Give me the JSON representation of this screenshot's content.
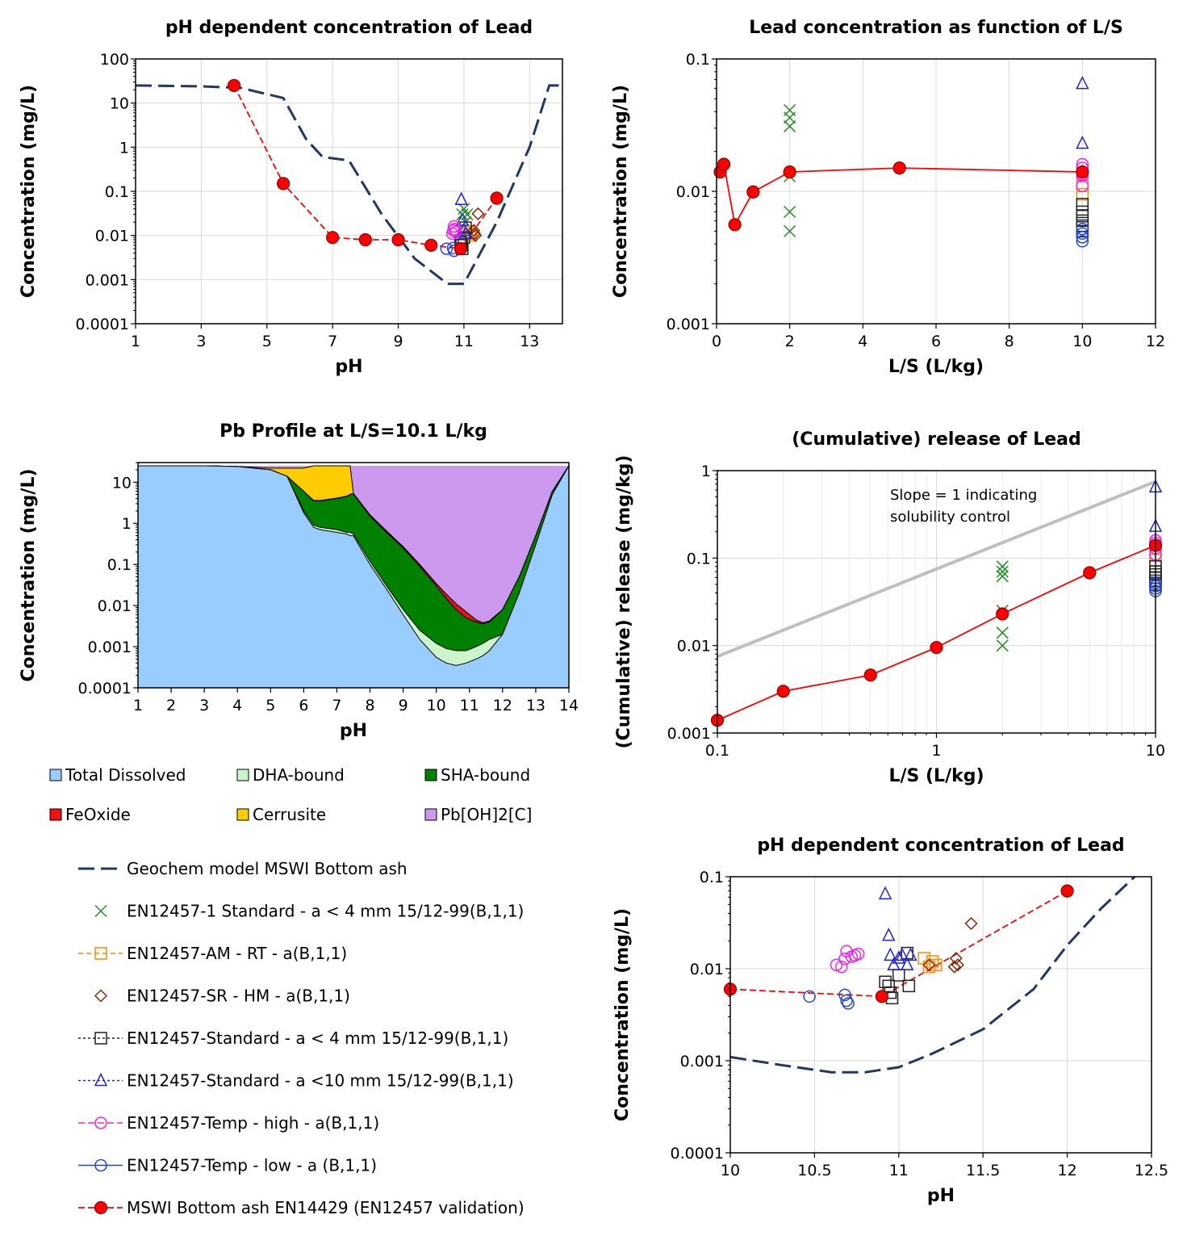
{
  "legend_area": {
    "top": [
      "Total Dissolved",
      "DHA-bound",
      "SHA-bound",
      "FeOxide",
      "Cerrusite",
      "Pb[OH]2[C]"
    ],
    "bottom": [
      "Geochem model MSWI Bottom ash",
      "EN12457-1 Standard - a < 4 mm 15/12-99(B,1,1)",
      "EN12457-AM - RT - a(B,1,1)",
      "EN12457-SR - HM - a(B,1,1)",
      "EN12457-Standard - a < 4 mm 15/12-99(B,1,1)",
      "EN12457-Standard - a <10 mm 15/12-99(B,1,1)",
      "EN12457-Temp - high - a(B,1,1)",
      "EN12457-Temp - low - a (B,1,1)",
      "MSWI Bottom ash EN14429 (EN12457 validation)"
    ]
  },
  "colors": {
    "model": "#1f3864",
    "validation": "#ff0000",
    "std4": "#228b22",
    "am": "#ff8c00",
    "sr": "#8b2500",
    "std4b": "#222222",
    "std10": "#2222dd",
    "temphigh": "#ee22ee",
    "templow": "#2244dd",
    "total": "#99ccff",
    "dha": "#ccf5cc",
    "sha": "#008000",
    "feoxide": "#ee1111",
    "cerrusite": "#ffcc00",
    "pboh2": "#cc99ee",
    "slope": "#bfbfbf"
  },
  "chart_data": [
    {
      "id": "ph1",
      "type": "scatter",
      "title": "pH dependent concentration of Lead",
      "xlabel": "pH",
      "ylabel": "Concentration (mg/L)",
      "xlim": [
        1,
        14
      ],
      "ylim": [
        0.0001,
        100
      ],
      "yscale": "log",
      "xticks": [
        1,
        3,
        5,
        7,
        9,
        11,
        13
      ],
      "yticks": [
        100,
        10,
        1,
        0.1,
        0.01,
        0.001,
        0.0001
      ],
      "ytick_labels": [
        "100",
        "10",
        "1",
        "0.1",
        "0.01",
        "0.001",
        "0.0001"
      ],
      "model": {
        "x": [
          1,
          3,
          4.2,
          5.5,
          6.2,
          6.7,
          7.5,
          8.5,
          9.5,
          10.5,
          11,
          12,
          13,
          13.6,
          14
        ],
        "y": [
          25,
          24,
          22,
          13,
          1.5,
          0.6,
          0.5,
          0.03,
          0.003,
          0.0008,
          0.0008,
          0.02,
          1,
          25,
          25
        ]
      },
      "validation": {
        "x": [
          4,
          5.5,
          7,
          8,
          9,
          10,
          10.9,
          12
        ],
        "y": [
          25,
          0.15,
          0.009,
          0.008,
          0.008,
          0.006,
          0.005,
          0.07
        ]
      },
      "std4": {
        "x": [
          10.95,
          11.0,
          11.05,
          11.1
        ],
        "y": [
          0.03,
          0.04,
          0.02,
          0.03
        ]
      },
      "am": {
        "x": [
          11.17,
          11.2,
          11.22
        ],
        "y": [
          0.012,
          0.01,
          0.011
        ]
      },
      "sr": {
        "x": [
          11.3,
          11.32,
          11.35,
          11.43
        ],
        "y": [
          0.013,
          0.011,
          0.01,
          0.031
        ]
      },
      "std4b": {
        "x": [
          10.9,
          10.93,
          10.95,
          11.0,
          11.05
        ],
        "y": [
          0.007,
          0.006,
          0.005,
          0.009,
          0.015
        ]
      },
      "std10": {
        "x": [
          10.92,
          10.95,
          11.0,
          11.05
        ],
        "y": [
          0.065,
          0.022,
          0.013,
          0.011
        ]
      },
      "temphigh": {
        "x": [
          10.65,
          10.68,
          10.7,
          10.72,
          10.75
        ],
        "y": [
          0.011,
          0.013,
          0.016,
          0.014,
          0.012
        ]
      },
      "templow": {
        "x": [
          10.47,
          10.67,
          10.7
        ],
        "y": [
          0.005,
          0.0052,
          0.0045
        ]
      }
    },
    {
      "id": "ls1",
      "type": "scatter",
      "title": "Lead concentration as function of L/S",
      "xlabel": "L/S (L/kg)",
      "ylabel": "Concentration (mg/L)",
      "xlim": [
        0,
        12
      ],
      "ylim": [
        0.001,
        0.1
      ],
      "yscale": "log",
      "xticks": [
        0,
        2,
        4,
        6,
        8,
        10,
        12
      ],
      "yticks": [
        0.1,
        0.01,
        0.001
      ],
      "ytick_labels": [
        "0.1",
        "0.01",
        "0.001"
      ],
      "validation": {
        "x": [
          0.1,
          0.2,
          0.5,
          1,
          2,
          5,
          10
        ],
        "y": [
          0.014,
          0.016,
          0.0056,
          0.0099,
          0.014,
          0.015,
          0.014
        ]
      },
      "std4": {
        "x": [
          2,
          2,
          2,
          2,
          2,
          2
        ],
        "y": [
          0.041,
          0.036,
          0.031,
          0.013,
          0.007,
          0.005
        ]
      },
      "std10": {
        "x": [
          10,
          10,
          10
        ],
        "y": [
          0.065,
          0.023,
          0.014
        ]
      },
      "std4b": {
        "x": [
          10,
          10,
          10,
          10,
          10,
          10
        ],
        "y": [
          0.008,
          0.007,
          0.0065,
          0.006,
          0.0055,
          0.005
        ]
      },
      "am": {
        "x": [
          10,
          10
        ],
        "y": [
          0.011,
          0.0095
        ]
      },
      "temphigh": {
        "x": [
          10,
          10,
          10,
          10,
          10
        ],
        "y": [
          0.016,
          0.015,
          0.0135,
          0.013,
          0.011
        ]
      },
      "templow": {
        "x": [
          10,
          10,
          10,
          10
        ],
        "y": [
          0.0052,
          0.0048,
          0.0045,
          0.0042
        ]
      }
    },
    {
      "id": "prof",
      "type": "area",
      "title": "Pb Profile at L/S=10.1 L/kg",
      "xlabel": "pH",
      "ylabel": "Concentration (mg/L)",
      "xlim": [
        1,
        14
      ],
      "ylim": [
        0.0001,
        30
      ],
      "yscale": "log",
      "xticks": [
        1,
        2,
        3,
        4,
        5,
        6,
        7,
        8,
        9,
        10,
        11,
        12,
        13,
        14
      ],
      "yticks": [
        10,
        1,
        0.1,
        0.01,
        0.001,
        0.0001
      ],
      "ytick_labels": [
        "10",
        "1",
        "0.1",
        "0.01",
        "0.001",
        "0.0001"
      ],
      "x": [
        1,
        2,
        3,
        4,
        5,
        5.5,
        6,
        6.3,
        6.5,
        7,
        7.3,
        7.4,
        7.5,
        8,
        8.5,
        9,
        9.5,
        10,
        10.3,
        10.6,
        10.9,
        11.2,
        11.4,
        11.6,
        12,
        12.5,
        13,
        13.5,
        14
      ],
      "series": [
        {
          "name": "Total Dissolved",
          "values": [
            25,
            25,
            25,
            24,
            20,
            14,
            1.8,
            0.8,
            0.7,
            0.6,
            0.55,
            0.5,
            0.5,
            0.1,
            0.025,
            0.006,
            0.0015,
            0.00055,
            0.0004,
            0.00035,
            0.0004,
            0.0005,
            0.0006,
            0.0008,
            0.002,
            0.02,
            0.3,
            5,
            25
          ]
        },
        {
          "name": "DHA-bound",
          "values": [
            25,
            25,
            25,
            24,
            20,
            14,
            2,
            0.9,
            0.8,
            0.7,
            0.6,
            0.6,
            0.55,
            0.12,
            0.03,
            0.008,
            0.0025,
            0.0012,
            0.0009,
            0.0008,
            0.0008,
            0.001,
            0.0012,
            0.0015,
            0.002,
            0.02,
            0.3,
            5,
            25
          ]
        },
        {
          "name": "SHA-bound",
          "values": [
            25,
            25,
            25,
            24,
            20,
            14,
            6,
            3.5,
            3.5,
            4,
            4.5,
            5,
            5.2,
            1.5,
            0.6,
            0.25,
            0.09,
            0.03,
            0.015,
            0.008,
            0.005,
            0.004,
            0.0036,
            0.004,
            0.008,
            0.05,
            0.5,
            6,
            25
          ]
        },
        {
          "name": "FeOxide",
          "values": [
            25,
            25,
            25,
            24,
            20,
            14,
            6,
            3.6,
            3.6,
            4.1,
            4.6,
            5.1,
            5.3,
            1.6,
            0.65,
            0.27,
            0.1,
            0.034,
            0.019,
            0.011,
            0.007,
            0.0045,
            0.0038,
            0.0042,
            0.008,
            0.05,
            0.5,
            6,
            25
          ]
        },
        {
          "name": "Cerrusite",
          "values": [
            25,
            25,
            25,
            24,
            22,
            22,
            22,
            25,
            25,
            25,
            25,
            25,
            5.3,
            1.6,
            0.65,
            0.27,
            0.1,
            0.034,
            0.019,
            0.011,
            0.007,
            0.0045,
            0.0038,
            0.0042,
            0.008,
            0.05,
            0.5,
            6,
            25
          ]
        },
        {
          "name": "Pb[OH]2[C]",
          "values": [
            25,
            25,
            25,
            25,
            25,
            25,
            25,
            25,
            25,
            25,
            25,
            25,
            25,
            25,
            25,
            25,
            25,
            25,
            25,
            25,
            25,
            25,
            25,
            25,
            25,
            25,
            25,
            25,
            25
          ]
        }
      ]
    },
    {
      "id": "cum",
      "type": "scatter",
      "title": "(Cumulative) release of Lead",
      "xlabel": "L/S (L/kg)",
      "ylabel": "(Cumulative) release (mg/kg)",
      "xlim": [
        0.1,
        10
      ],
      "ylim": [
        0.001,
        1
      ],
      "xscale": "log",
      "yscale": "log",
      "xticks": [
        0.1,
        1,
        10
      ],
      "xtick_labels": [
        "0.1",
        "1",
        "10"
      ],
      "yticks": [
        1,
        0.1,
        0.01,
        0.001
      ],
      "ytick_labels": [
        "1",
        "0.1",
        "0.01",
        "0.001"
      ],
      "annotation": [
        "Slope = 1 indicating",
        "solubility control"
      ],
      "slope_line": {
        "x": [
          0.1,
          10
        ],
        "y": [
          0.0075,
          0.75
        ]
      },
      "validation": {
        "x": [
          0.1,
          0.2,
          0.5,
          1,
          2,
          5,
          10
        ],
        "y": [
          0.0014,
          0.003,
          0.0046,
          0.0095,
          0.023,
          0.068,
          0.14
        ]
      },
      "std4": {
        "x": [
          2,
          2,
          2,
          2,
          2,
          2
        ],
        "y": [
          0.08,
          0.07,
          0.062,
          0.025,
          0.014,
          0.01
        ]
      },
      "std10": {
        "x": [
          10,
          10,
          10
        ],
        "y": [
          0.65,
          0.23,
          0.14
        ]
      },
      "std4b": {
        "x": [
          10,
          10,
          10,
          10,
          10,
          10
        ],
        "y": [
          0.08,
          0.07,
          0.065,
          0.06,
          0.055,
          0.05
        ]
      },
      "am": {
        "x": [
          10,
          10
        ],
        "y": [
          0.11,
          0.095
        ]
      },
      "temphigh": {
        "x": [
          10,
          10,
          10,
          10
        ],
        "y": [
          0.16,
          0.15,
          0.13,
          0.11
        ]
      },
      "templow": {
        "x": [
          10,
          10,
          10,
          10
        ],
        "y": [
          0.052,
          0.048,
          0.045,
          0.042
        ]
      }
    },
    {
      "id": "ph2",
      "type": "scatter",
      "title": "pH dependent concentration of Lead",
      "xlabel": "pH",
      "ylabel": "Concentration (mg/L)",
      "xlim": [
        10,
        12.5
      ],
      "ylim": [
        0.0001,
        0.1
      ],
      "yscale": "log",
      "xticks": [
        10,
        10.5,
        11,
        11.5,
        12,
        12.5
      ],
      "xtick_labels": [
        "10",
        "10.5",
        "11",
        "11.5",
        "12",
        "12.5"
      ],
      "yticks": [
        0.1,
        0.01,
        0.001,
        0.0001
      ],
      "ytick_labels": [
        "0.1",
        "0.01",
        "0.001",
        "0.0001"
      ],
      "model": {
        "x": [
          10,
          10.3,
          10.6,
          10.8,
          11,
          11.2,
          11.5,
          11.8,
          12,
          12.2,
          12.4
        ],
        "y": [
          0.0011,
          0.0009,
          0.00075,
          0.00075,
          0.00085,
          0.0012,
          0.0022,
          0.006,
          0.018,
          0.045,
          0.1
        ]
      },
      "validation": {
        "x": [
          10,
          10.9,
          12
        ],
        "y": [
          0.006,
          0.005,
          0.07
        ]
      },
      "am": {
        "x": [
          11.15,
          11.18,
          11.22,
          11.2
        ],
        "y": [
          0.013,
          0.0105,
          0.011,
          0.012
        ]
      },
      "sr": {
        "x": [
          11.18,
          11.33,
          11.35,
          11.34,
          11.43
        ],
        "y": [
          0.011,
          0.0105,
          0.011,
          0.013,
          0.031
        ]
      },
      "std4b": {
        "x": [
          10.92,
          10.94,
          10.95,
          10.96,
          11.0,
          11.05,
          11.06
        ],
        "y": [
          0.0072,
          0.0065,
          0.0055,
          0.0048,
          0.0085,
          0.0148,
          0.0065
        ]
      },
      "std10": {
        "x": [
          10.92,
          10.94,
          10.95,
          10.97,
          11.0,
          11.02,
          11.05,
          11.07
        ],
        "y": [
          0.065,
          0.023,
          0.014,
          0.011,
          0.013,
          0.014,
          0.011,
          0.014
        ]
      },
      "temphigh": {
        "x": [
          10.63,
          10.66,
          10.68,
          10.69,
          10.72,
          10.74,
          10.76
        ],
        "y": [
          0.011,
          0.0105,
          0.0128,
          0.0155,
          0.0135,
          0.014,
          0.0145
        ]
      },
      "templow": {
        "x": [
          10.47,
          10.68,
          10.69,
          10.7
        ],
        "y": [
          0.005,
          0.0052,
          0.0045,
          0.0042
        ]
      }
    }
  ]
}
